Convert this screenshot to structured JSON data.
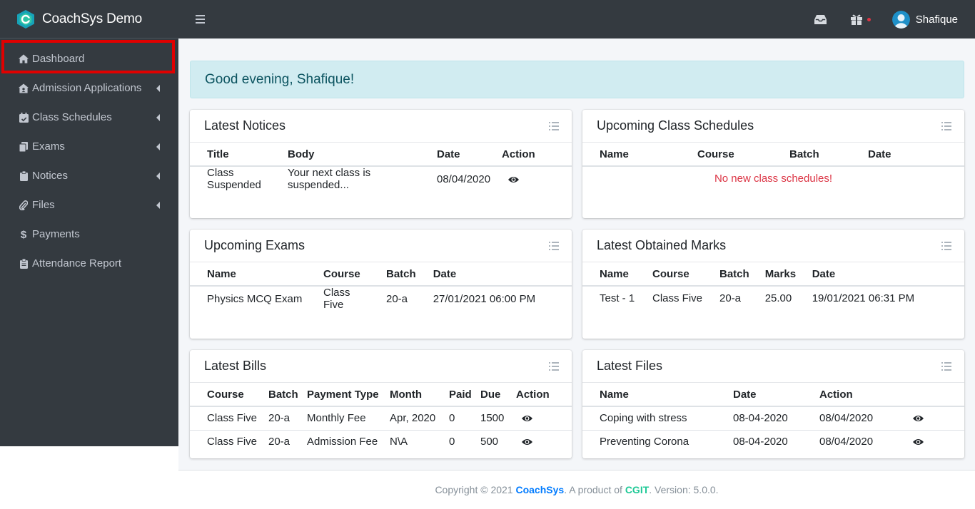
{
  "brand": {
    "name": "CoachSys Demo"
  },
  "sidebar": {
    "items": [
      {
        "label": "Dashboard",
        "icon": "home-icon",
        "active": true,
        "has_submenu": false
      },
      {
        "label": "Admission Applications",
        "icon": "house-user-icon",
        "has_submenu": true
      },
      {
        "label": "Class Schedules",
        "icon": "calendar-check-icon",
        "has_submenu": true
      },
      {
        "label": "Exams",
        "icon": "copy-icon",
        "has_submenu": true
      },
      {
        "label": "Notices",
        "icon": "clipboard-icon",
        "has_submenu": true
      },
      {
        "label": "Files",
        "icon": "paperclip-icon",
        "has_submenu": true
      },
      {
        "label": "Payments",
        "icon": "dollar-icon",
        "has_submenu": false
      },
      {
        "label": "Attendance Report",
        "icon": "clipboard-list-icon",
        "has_submenu": false
      }
    ]
  },
  "header": {
    "user_name": "Shafique",
    "icons": [
      "menu-icon",
      "inbox-icon",
      "gift-icon"
    ]
  },
  "greeting": "Good evening, Shafique!",
  "cards": {
    "notices": {
      "title": "Latest Notices",
      "columns": [
        "Title",
        "Body",
        "Date",
        "Action"
      ],
      "rows": [
        [
          "Class Suspended",
          "Your next class is suspended...",
          "08/04/2020"
        ]
      ]
    },
    "schedules": {
      "title": "Upcoming Class Schedules",
      "columns": [
        "Name",
        "Course",
        "Batch",
        "Date"
      ],
      "empty_message": "No new class schedules!"
    },
    "exams": {
      "title": "Upcoming Exams",
      "columns": [
        "Name",
        "Course",
        "Batch",
        "Date"
      ],
      "rows": [
        [
          "Physics MCQ Exam",
          "Class Five",
          "20-a",
          "27/01/2021 06:00 PM"
        ]
      ]
    },
    "marks": {
      "title": "Latest Obtained Marks",
      "columns": [
        "Name",
        "Course",
        "Batch",
        "Marks",
        "Date"
      ],
      "rows": [
        [
          "Test - 1",
          "Class Five",
          "20-a",
          "25.00",
          "19/01/2021 06:31 PM"
        ]
      ]
    },
    "bills": {
      "title": "Latest Bills",
      "columns": [
        "Course",
        "Batch",
        "Payment Type",
        "Month",
        "Paid",
        "Due",
        "Action"
      ],
      "rows": [
        [
          "Class Five",
          "20-a",
          "Monthly Fee",
          "Apr, 2020",
          "0",
          "1500"
        ],
        [
          "Class Five",
          "20-a",
          "Admission Fee",
          "N\\A",
          "0",
          "500"
        ]
      ]
    },
    "files": {
      "title": "Latest Files",
      "columns": [
        "Name",
        "Date",
        "Action"
      ],
      "rows": [
        [
          "Coping with stress",
          "08-04-2020",
          "08/04/2020"
        ],
        [
          "Preventing Corona",
          "08-04-2020",
          "08/04/2020"
        ]
      ]
    }
  },
  "footer": {
    "prefix": "Copyright © 2021 ",
    "brand": "CoachSys",
    "middle": ". A product of ",
    "company": "CGIT",
    "suffix": ". Version: 5.0.0."
  },
  "colors": {
    "sidebar_bg": "#343a40",
    "alert_bg": "#d1ecf1",
    "alert_text": "#0c5460",
    "empty_red": "#dc3545",
    "link_blue": "#007bff",
    "link_teal": "#20c997"
  }
}
